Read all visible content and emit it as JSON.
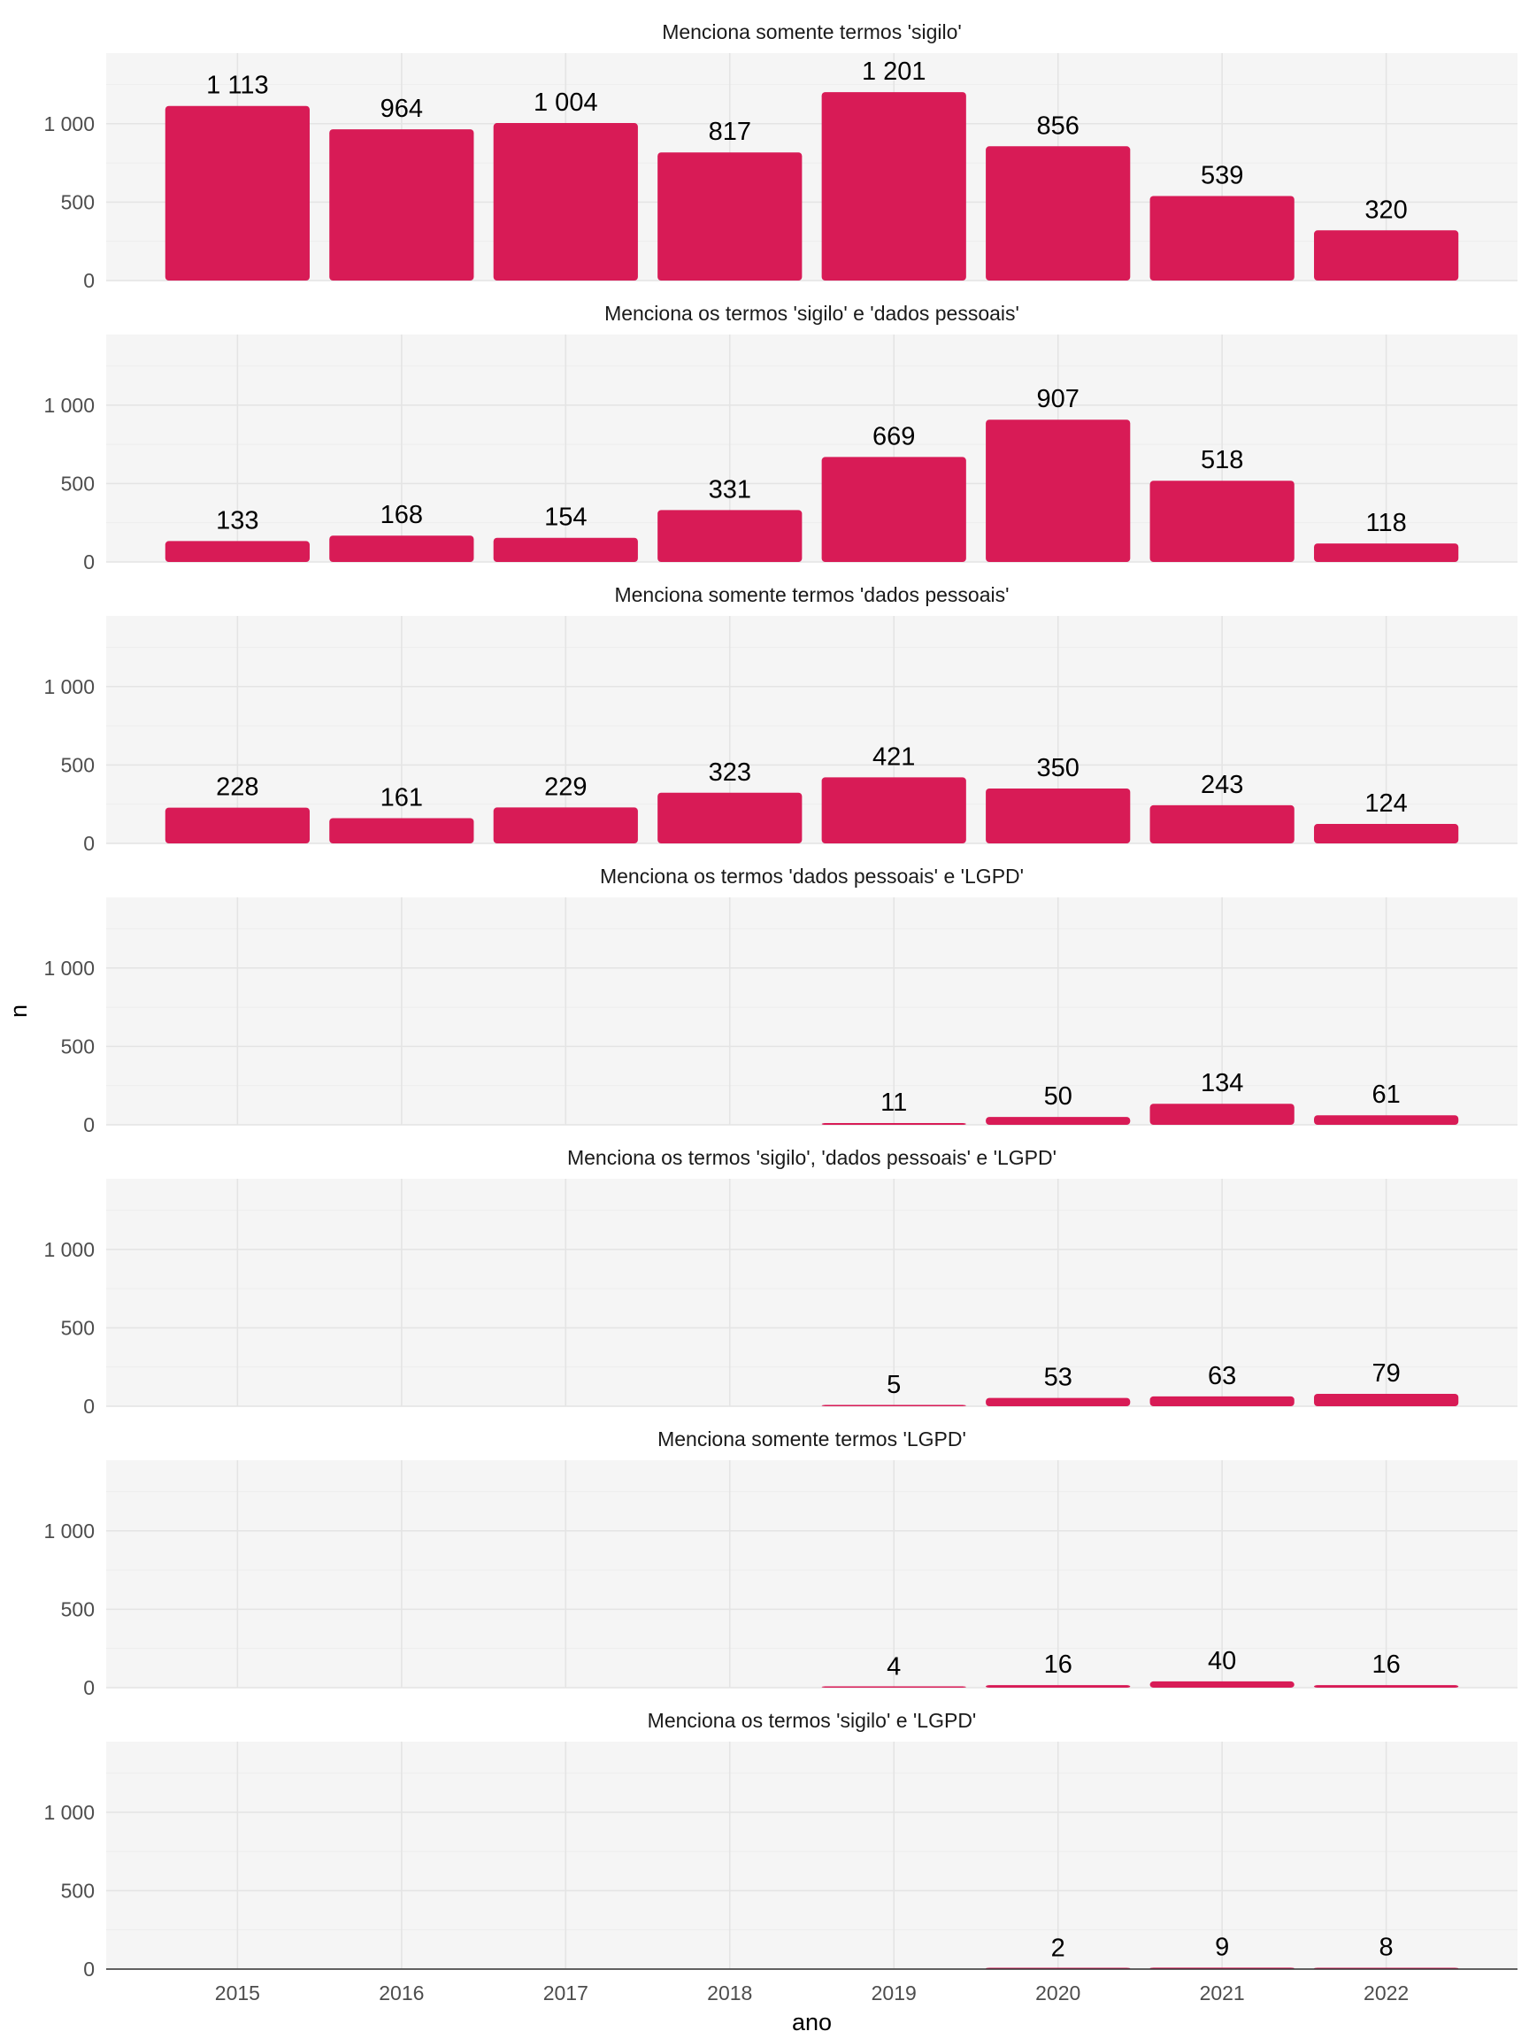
{
  "chart_data": {
    "type": "bar",
    "facet": "vertical",
    "xlabel": "ano",
    "ylabel": "n",
    "categories": [
      "2015",
      "2016",
      "2017",
      "2018",
      "2019",
      "2020",
      "2021",
      "2022"
    ],
    "ylim": [
      0,
      1450
    ],
    "yticks": [
      0,
      500,
      1000
    ],
    "ytick_labels": [
      "0",
      "500",
      "1 000"
    ],
    "bar_color": "#d81b56",
    "panel_background": "#f5f5f5",
    "grid": true,
    "legend": "none",
    "panels": [
      {
        "title": "Menciona somente termos 'sigilo'",
        "values": [
          1113,
          964,
          1004,
          817,
          1201,
          856,
          539,
          320
        ],
        "labels": [
          "1 113",
          "964",
          "1 004",
          "817",
          "1 201",
          "856",
          "539",
          "320"
        ]
      },
      {
        "title": "Menciona os termos 'sigilo' e 'dados pessoais'",
        "values": [
          133,
          168,
          154,
          331,
          669,
          907,
          518,
          118
        ],
        "labels": [
          "133",
          "168",
          "154",
          "331",
          "669",
          "907",
          "518",
          "118"
        ]
      },
      {
        "title": "Menciona somente termos 'dados pessoais'",
        "values": [
          228,
          161,
          229,
          323,
          421,
          350,
          243,
          124
        ],
        "labels": [
          "228",
          "161",
          "229",
          "323",
          "421",
          "350",
          "243",
          "124"
        ]
      },
      {
        "title": "Menciona os termos 'dados pessoais' e 'LGPD'",
        "values": [
          null,
          null,
          null,
          null,
          11,
          50,
          134,
          61
        ],
        "labels": [
          "",
          "",
          "",
          "",
          "11",
          "50",
          "134",
          "61"
        ]
      },
      {
        "title": "Menciona os termos 'sigilo', 'dados pessoais' e 'LGPD'",
        "values": [
          null,
          null,
          null,
          null,
          5,
          53,
          63,
          79
        ],
        "labels": [
          "",
          "",
          "",
          "",
          "5",
          "53",
          "63",
          "79"
        ]
      },
      {
        "title": "Menciona somente termos 'LGPD'",
        "values": [
          null,
          null,
          null,
          null,
          4,
          16,
          40,
          16
        ],
        "labels": [
          "",
          "",
          "",
          "",
          "4",
          "16",
          "40",
          "16"
        ]
      },
      {
        "title": "Menciona os termos 'sigilo' e 'LGPD'",
        "values": [
          null,
          null,
          null,
          null,
          null,
          2,
          9,
          8
        ],
        "labels": [
          "",
          "",
          "",
          "",
          "",
          "2",
          "9",
          "8"
        ]
      }
    ]
  }
}
